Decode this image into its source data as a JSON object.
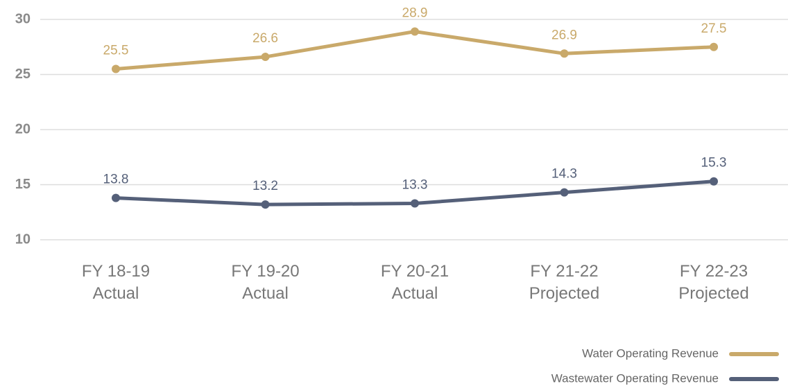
{
  "chart_data": {
    "type": "line",
    "categories": [
      [
        "FY 18-19",
        "Actual"
      ],
      [
        "FY 19-20",
        "Actual"
      ],
      [
        "FY 20-21",
        "Actual"
      ],
      [
        "FY 21-22",
        "Projected"
      ],
      [
        "FY 22-23",
        "Projected"
      ]
    ],
    "series": [
      {
        "name": "Water Operating Revenue",
        "color": "#c9a96a",
        "values": [
          25.5,
          26.6,
          28.9,
          26.9,
          27.5
        ]
      },
      {
        "name": "Wastewater Operating Revenue",
        "color": "#556079",
        "values": [
          13.8,
          13.2,
          13.3,
          14.3,
          15.3
        ]
      }
    ],
    "ylim": [
      10,
      30
    ],
    "yticks": [
      10,
      15,
      20,
      25,
      30
    ],
    "grid": true,
    "legend": "bottom-right"
  }
}
